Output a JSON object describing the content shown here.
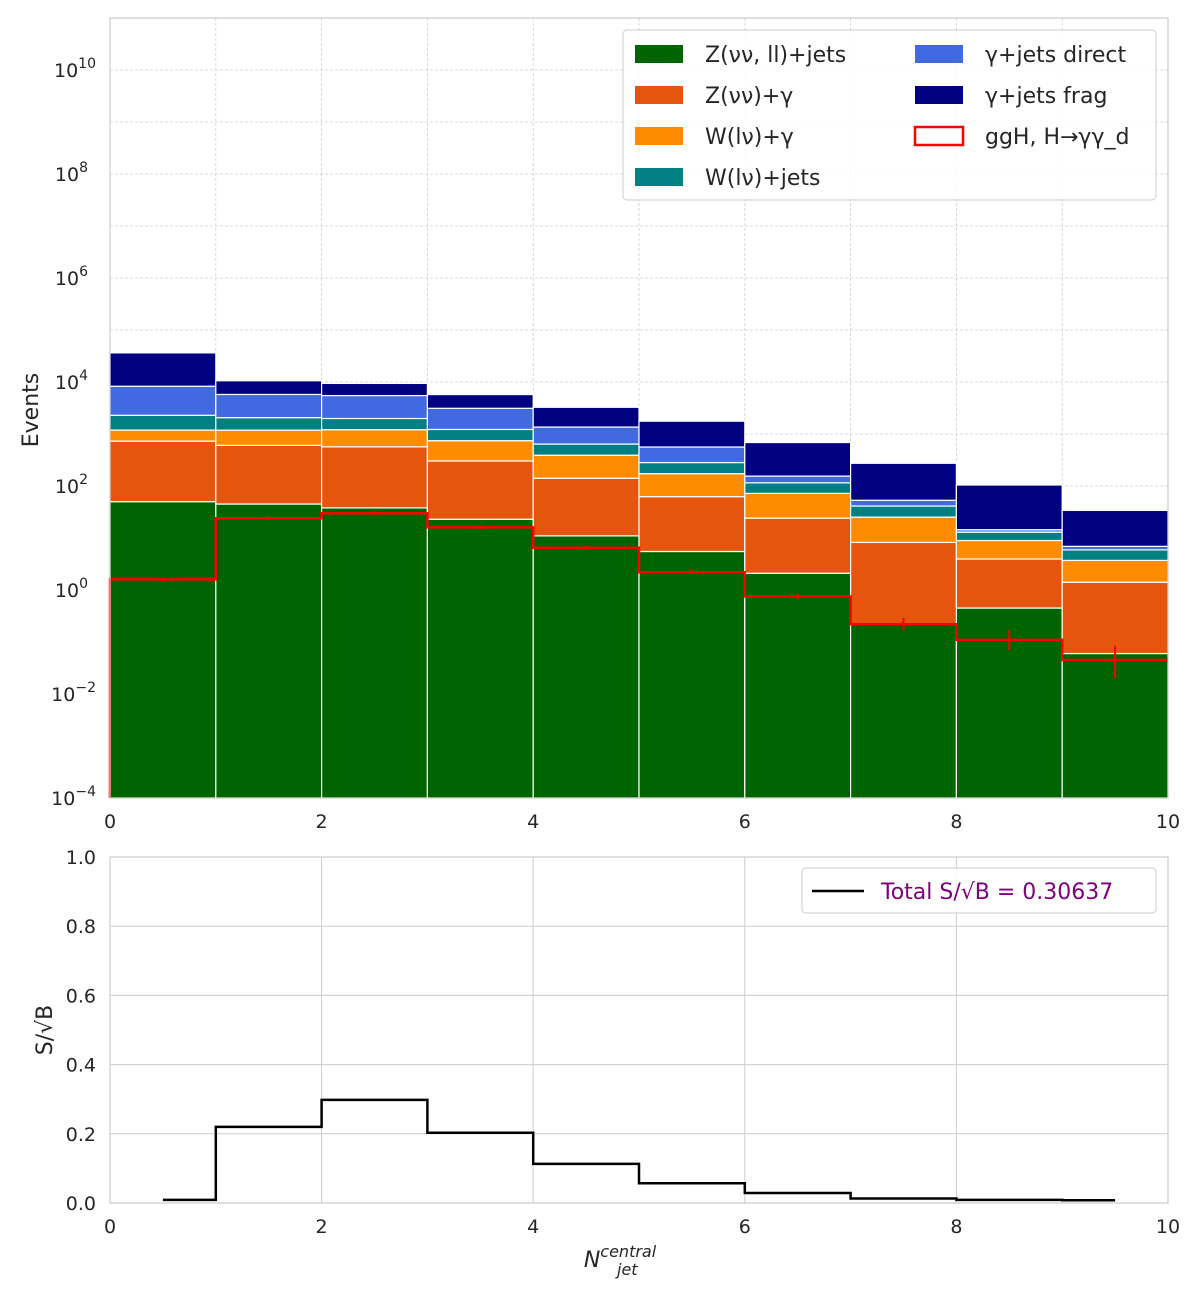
{
  "chart_data": [
    {
      "type": "bar",
      "stacked": true,
      "yscale": "log",
      "title": "",
      "xlabel": "",
      "ylabel": "Events",
      "xlim": [
        0,
        10
      ],
      "ylim": [
        0.0001,
        100000000000
      ],
      "grid": true,
      "legend_location": "top-right",
      "legend_columns": 2,
      "xticks": [
        "0",
        "2",
        "4",
        "6",
        "8",
        "10"
      ],
      "yticks": [
        {
          "base": "10",
          "exp": "10"
        },
        {
          "base": "10",
          "exp": "8"
        },
        {
          "base": "10",
          "exp": "6"
        },
        {
          "base": "10",
          "exp": "4"
        },
        {
          "base": "10",
          "exp": "2"
        },
        {
          "base": "10",
          "exp": "0"
        },
        {
          "base": "10",
          "exp": "−2"
        },
        {
          "base": "10",
          "exp": "−4"
        }
      ],
      "bin_edges": [
        0,
        1,
        2,
        3,
        4,
        5,
        6,
        7,
        8,
        9,
        10
      ],
      "series": [
        {
          "name": "Z(νν, ll)+jets",
          "color": "#006400",
          "values": [
            50,
            45,
            38,
            23,
            11,
            5.5,
            2.1,
            0.22,
            0.45,
            0.06
          ]
        },
        {
          "name": "Z(νν)+γ",
          "color": "#e6550d",
          "values": [
            680,
            560,
            530,
            280,
            130,
            57,
            22,
            8,
            3.5,
            1.35
          ]
        },
        {
          "name": "W(lν)+γ",
          "color": "#ff8c00",
          "values": [
            460,
            580,
            640,
            440,
            250,
            110,
            48,
            17,
            5,
            2.3
          ]
        },
        {
          "name": "W(lν)+jets",
          "color": "#008080",
          "values": [
            1100,
            880,
            780,
            480,
            250,
            110,
            43,
            16,
            4,
            2.2
          ]
        },
        {
          "name": "γ+jets direct",
          "color": "#4169e1",
          "values": [
            6000,
            3700,
            3500,
            1900,
            720,
            280,
            40,
            12,
            1.5,
            1
          ]
        },
        {
          "name": "γ+jets frag",
          "color": "#000080",
          "values": [
            28000,
            4800,
            3900,
            2600,
            1900,
            1200,
            530,
            220,
            90,
            27
          ]
        }
      ],
      "signal": {
        "name": "ggH, H→γγ_d",
        "color": "#ff0000",
        "values": [
          1.6,
          24,
          30,
          16,
          6.5,
          2.2,
          0.75,
          0.22,
          0.11,
          0.045
        ],
        "errors_low": [
          0.1,
          0.5,
          0.6,
          0.4,
          0.3,
          0.15,
          0.1,
          0.05,
          0.04,
          0.025
        ],
        "errors_high": [
          0.1,
          0.5,
          0.6,
          0.4,
          0.3,
          0.15,
          0.12,
          0.07,
          0.06,
          0.04
        ]
      }
    },
    {
      "type": "line",
      "drawstyle": "steps",
      "title": "",
      "xlabel": "N_jet^central",
      "xlabel_main": "N",
      "xlabel_sup": "central",
      "xlabel_sub": "jet",
      "ylabel": "S/√B",
      "xlim": [
        0,
        10
      ],
      "ylim": [
        0,
        1
      ],
      "grid": true,
      "legend_location": "top-right",
      "xticks": [
        "0",
        "2",
        "4",
        "6",
        "8",
        "10"
      ],
      "yticks": [
        "0.0",
        "0.2",
        "0.4",
        "0.6",
        "0.8",
        "1.0"
      ],
      "x": [
        0.5,
        1.5,
        2.5,
        3.5,
        4.5,
        5.5,
        6.5,
        7.5,
        8.5,
        9.5
      ],
      "series": [
        {
          "name": "Total S/√B = 0.30637",
          "color": "#000000",
          "legend_text_color": "#800080",
          "values": [
            0.009,
            0.22,
            0.298,
            0.203,
            0.113,
            0.057,
            0.029,
            0.013,
            0.009,
            0.008
          ]
        }
      ]
    }
  ]
}
